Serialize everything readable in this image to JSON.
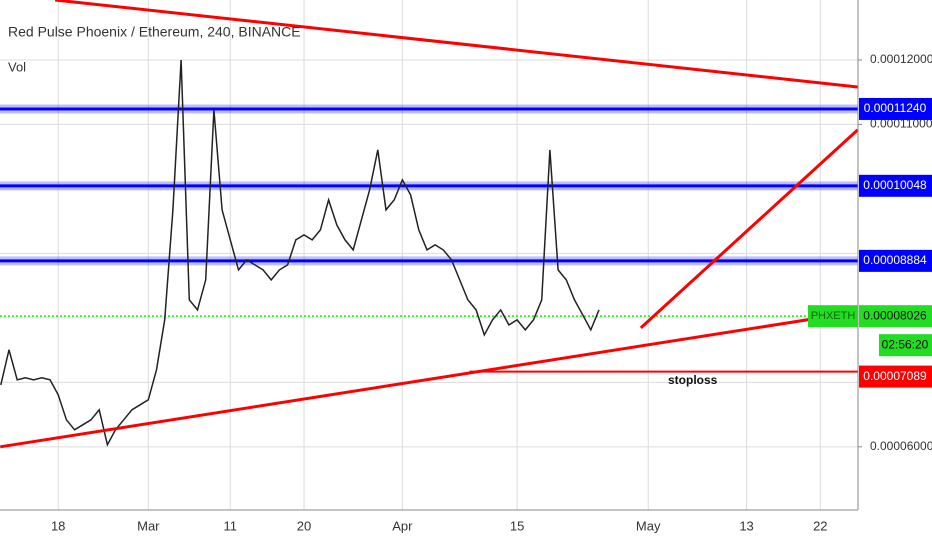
{
  "chart_data": {
    "type": "line",
    "title": "Red Pulse Phoenix / Ethereum, 240, BINANCE",
    "indicator": "Vol",
    "symbol": "PHXETH",
    "countdown": "02:56:20",
    "annotation": "stoploss",
    "color": "#222222",
    "x": [
      -7,
      -6,
      -5,
      -4,
      -3,
      -2,
      -1,
      0,
      1,
      2,
      3,
      4,
      5,
      6,
      7,
      8,
      9,
      10,
      11,
      12,
      13,
      14,
      15,
      16,
      17,
      18,
      19,
      20,
      21,
      22,
      23,
      24,
      25,
      26,
      27,
      28,
      29,
      30,
      31,
      32,
      33,
      34,
      35,
      36,
      37,
      38,
      39,
      40,
      41,
      42,
      43,
      44,
      45,
      46,
      47,
      48,
      49,
      50,
      51,
      52,
      53,
      54,
      55,
      56,
      57,
      58,
      59,
      60,
      61,
      62,
      63,
      64,
      65,
      66
    ],
    "values": [
      6.961e-05,
      7.504e-05,
      7.039e-05,
      7.07e-05,
      7.039e-05,
      7.07e-05,
      7.039e-05,
      6.806e-05,
      6.419e-05,
      6.264e-05,
      6.341e-05,
      6.419e-05,
      6.574e-05,
      6.031e-05,
      6.264e-05,
      6.419e-05,
      6.574e-05,
      6.651e-05,
      6.729e-05,
      7.194e-05,
      7.969e-05,
      9.674e-05,
      0.00012,
      8.279e-05,
      8.124e-05,
      8.589e-05,
      0.00011225,
      9.674e-05,
      9.209e-05,
      8.744e-05,
      8.899e-05,
      8.822e-05,
      8.744e-05,
      8.589e-05,
      8.744e-05,
      8.822e-05,
      9.209e-05,
      9.287e-05,
      9.209e-05,
      9.364e-05,
      9.829e-05,
      9.442e-05,
      9.209e-05,
      9.054e-05,
      9.519e-05,
      9.984e-05,
      0.00010605,
      9.674e-05,
      9.829e-05,
      0.0001014,
      9.907e-05,
      9.364e-05,
      9.054e-05,
      9.132e-05,
      9.054e-05,
      8.899e-05,
      8.589e-05,
      8.279e-05,
      8.124e-05,
      7.736e-05,
      7.969e-05,
      8.124e-05,
      7.891e-05,
      7.969e-05,
      7.814e-05,
      7.969e-05,
      8.279e-05,
      0.00010605,
      8.744e-05,
      8.589e-05,
      8.279e-05,
      8.047e-05,
      7.814e-05,
      8.124e-05
    ],
    "xlim": [
      -7.1,
      97.6
    ],
    "xticks": [
      {
        "value": 0,
        "label": "18"
      },
      {
        "value": 11,
        "label": "Mar"
      },
      {
        "value": 21,
        "label": "11"
      },
      {
        "value": 30,
        "label": "20"
      },
      {
        "value": 42,
        "label": "Apr"
      },
      {
        "value": 56,
        "label": "15"
      },
      {
        "value": 72,
        "label": "May"
      },
      {
        "value": 84,
        "label": "13"
      },
      {
        "value": 93,
        "label": "22"
      }
    ],
    "ylim": [
      5.02e-05,
      0.0001293
    ],
    "yticks": [
      {
        "value": 0.00012,
        "label": "0.00012000"
      },
      {
        "value": 0.00011,
        "label": "0.00011000"
      },
      {
        "value": 6e-05,
        "label": "0.00006000"
      }
    ],
    "ygrid": [
      0.00012,
      0.00011,
      0.0001,
      9e-05,
      8e-05,
      7e-05,
      6e-05
    ],
    "levels": [
      {
        "value": 0.0001124,
        "label": "0.00011240",
        "color": "#0000ff"
      },
      {
        "value": 0.00010048,
        "label": "0.00010048",
        "color": "#0000ff"
      },
      {
        "value": 8.884e-05,
        "label": "0.00008884",
        "color": "#0000ff"
      }
    ],
    "current": {
      "value": 8.026e-05,
      "label": "0.00008026",
      "color": "#22dd22"
    },
    "stoploss": {
      "value": 7.089e-05,
      "label": "0.00007089",
      "x": 50.2,
      "color": "#ff0000"
    },
    "trendlines": [
      {
        "x": [
          -0.37,
          97.56
        ],
        "y": [
          0.0001293,
          0.00011581
        ],
        "color": "#ff0000"
      },
      {
        "x": [
          -7.07,
          97.56
        ],
        "y": [
          6e-05,
          8.093e-05
        ],
        "color": "#ff0000"
      },
      {
        "x": [
          71.1,
          97.56
        ],
        "y": [
          7.845e-05,
          0.00010915
        ],
        "color": "#ff0000"
      }
    ]
  }
}
